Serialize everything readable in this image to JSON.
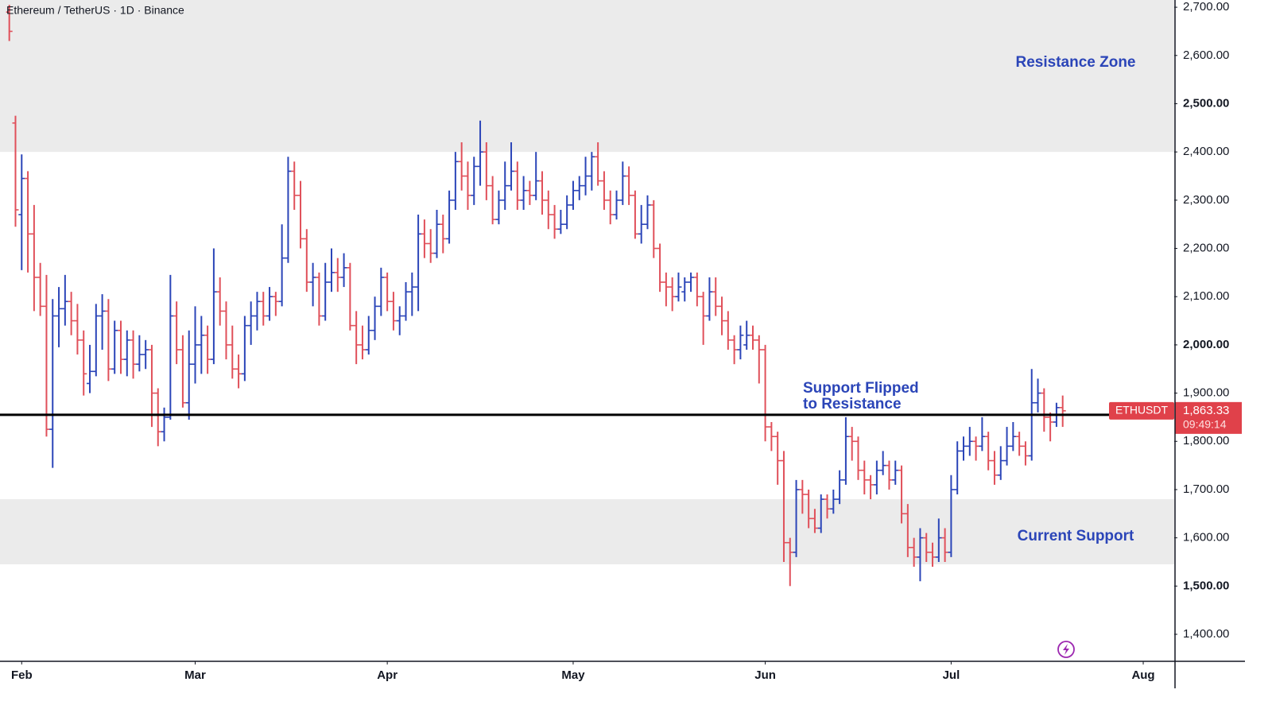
{
  "chart_data": {
    "type": "ohlc",
    "title": "Ethereum / TetherUS · 1D · Binance",
    "symbol": "ETHUSDT",
    "up_color": "#2b45b8",
    "down_color": "#e0505a",
    "xlim": [
      -1.5,
      188
    ],
    "xticks": [
      {
        "value": 2,
        "label": "Feb"
      },
      {
        "value": 30,
        "label": "Mar"
      },
      {
        "value": 61,
        "label": "Apr"
      },
      {
        "value": 91,
        "label": "May"
      },
      {
        "value": 122,
        "label": "Jun"
      },
      {
        "value": 152,
        "label": "Jul"
      },
      {
        "value": 183,
        "label": "Aug"
      }
    ],
    "ylim": [
      1344,
      2715
    ],
    "yticks": [
      {
        "value": 2700,
        "label": "2,700.00"
      },
      {
        "value": 2600,
        "label": "2,600.00"
      },
      {
        "value": 2500,
        "label": "2,500.00"
      },
      {
        "value": 2400,
        "label": "2,400.00"
      },
      {
        "value": 2300,
        "label": "2,300.00"
      },
      {
        "value": 2200,
        "label": "2,200.00"
      },
      {
        "value": 2100,
        "label": "2,100.00"
      },
      {
        "value": 2000,
        "label": "2,000.00"
      },
      {
        "value": 1900,
        "label": "1,900.00"
      },
      {
        "value": 1800,
        "label": "1,800.00"
      },
      {
        "value": 1700,
        "label": "1,700.00"
      },
      {
        "value": 1600,
        "label": "1,600.00"
      },
      {
        "value": 1500,
        "label": "1,500.00"
      },
      {
        "value": 1400,
        "label": "1,400.00"
      }
    ],
    "zones": [
      {
        "label": "Resistance Zone",
        "range": [
          2400,
          2715
        ]
      },
      {
        "label": "Current Support",
        "range": [
          1545,
          1680
        ]
      }
    ],
    "level": {
      "value": 1855,
      "label_lines": [
        "Support Flipped",
        "to Resistance"
      ]
    },
    "last_price": {
      "value": 1863.33,
      "label": "1,863.33"
    },
    "countdown": "09:49:14",
    "ohlc": [
      [
        2690,
        2705,
        2630,
        2650
      ],
      [
        2460,
        2475,
        2245,
        2280
      ],
      [
        2270,
        2395,
        2155,
        2345
      ],
      [
        2345,
        2360,
        2150,
        2230
      ],
      [
        2230,
        2290,
        2070,
        2140
      ],
      [
        2140,
        2170,
        2060,
        2080
      ],
      [
        2080,
        2145,
        1810,
        1825
      ],
      [
        1825,
        2095,
        1745,
        2060
      ],
      [
        2060,
        2120,
        1995,
        2075
      ],
      [
        2075,
        2145,
        2040,
        2090
      ],
      [
        2090,
        2110,
        2020,
        2050
      ],
      [
        2050,
        2085,
        1980,
        2010
      ],
      [
        2010,
        2030,
        1895,
        1940
      ],
      [
        1920,
        2000,
        1900,
        1945
      ],
      [
        1945,
        2085,
        1935,
        2060
      ],
      [
        2060,
        2105,
        1990,
        2070
      ],
      [
        2070,
        2095,
        1925,
        1950
      ],
      [
        1950,
        2050,
        1940,
        2030
      ],
      [
        2030,
        2050,
        1940,
        1970
      ],
      [
        1970,
        2030,
        1935,
        2010
      ],
      [
        2010,
        2030,
        1930,
        1960
      ],
      [
        1960,
        2020,
        1945,
        1980
      ],
      [
        1980,
        2010,
        1950,
        1990
      ],
      [
        1990,
        2000,
        1830,
        1900
      ],
      [
        1900,
        1910,
        1790,
        1820
      ],
      [
        1820,
        1870,
        1800,
        1850
      ],
      [
        1850,
        2145,
        1845,
        2060
      ],
      [
        2060,
        2090,
        1960,
        1990
      ],
      [
        1990,
        2020,
        1870,
        1880
      ],
      [
        1880,
        2030,
        1845,
        1960
      ],
      [
        1960,
        2080,
        1920,
        2000
      ],
      [
        2000,
        2060,
        1940,
        2020
      ],
      [
        2020,
        2040,
        1940,
        1970
      ],
      [
        1970,
        2200,
        1960,
        2110
      ],
      [
        2110,
        2140,
        2040,
        2070
      ],
      [
        2070,
        2090,
        1970,
        2000
      ],
      [
        2000,
        2040,
        1930,
        1950
      ],
      [
        1950,
        1980,
        1910,
        1940
      ],
      [
        1940,
        2060,
        1925,
        2040
      ],
      [
        2040,
        2090,
        2000,
        2060
      ],
      [
        2060,
        2110,
        2030,
        2090
      ],
      [
        2090,
        2110,
        2040,
        2060
      ],
      [
        2060,
        2120,
        2050,
        2100
      ],
      [
        2100,
        2110,
        2060,
        2090
      ],
      [
        2090,
        2250,
        2080,
        2180
      ],
      [
        2180,
        2390,
        2170,
        2360
      ],
      [
        2360,
        2380,
        2280,
        2310
      ],
      [
        2310,
        2340,
        2200,
        2220
      ],
      [
        2220,
        2240,
        2110,
        2130
      ],
      [
        2130,
        2170,
        2080,
        2140
      ],
      [
        2140,
        2150,
        2040,
        2060
      ],
      [
        2060,
        2170,
        2050,
        2130
      ],
      [
        2130,
        2200,
        2110,
        2150
      ],
      [
        2150,
        2180,
        2110,
        2140
      ],
      [
        2140,
        2190,
        2120,
        2160
      ],
      [
        2160,
        2170,
        2030,
        2040
      ],
      [
        2040,
        2070,
        1960,
        2000
      ],
      [
        2000,
        2040,
        1970,
        1990
      ],
      [
        1990,
        2060,
        1980,
        2030
      ],
      [
        2030,
        2100,
        2010,
        2080
      ],
      [
        2080,
        2160,
        2060,
        2140
      ],
      [
        2140,
        2150,
        2070,
        2090
      ],
      [
        2090,
        2110,
        2030,
        2050
      ],
      [
        2050,
        2080,
        2020,
        2060
      ],
      [
        2060,
        2130,
        2050,
        2110
      ],
      [
        2110,
        2150,
        2060,
        2120
      ],
      [
        2120,
        2270,
        2070,
        2230
      ],
      [
        2230,
        2260,
        2180,
        2210
      ],
      [
        2210,
        2240,
        2170,
        2190
      ],
      [
        2190,
        2280,
        2180,
        2250
      ],
      [
        2250,
        2270,
        2190,
        2220
      ],
      [
        2220,
        2320,
        2210,
        2300
      ],
      [
        2300,
        2400,
        2280,
        2380
      ],
      [
        2380,
        2420,
        2320,
        2350
      ],
      [
        2350,
        2380,
        2280,
        2310
      ],
      [
        2310,
        2390,
        2290,
        2370
      ],
      [
        2370,
        2465,
        2330,
        2400
      ],
      [
        2400,
        2420,
        2300,
        2330
      ],
      [
        2330,
        2350,
        2250,
        2260
      ],
      [
        2260,
        2320,
        2250,
        2300
      ],
      [
        2300,
        2380,
        2280,
        2330
      ],
      [
        2330,
        2420,
        2320,
        2360
      ],
      [
        2360,
        2380,
        2280,
        2300
      ],
      [
        2300,
        2350,
        2280,
        2320
      ],
      [
        2320,
        2340,
        2290,
        2310
      ],
      [
        2310,
        2400,
        2300,
        2340
      ],
      [
        2340,
        2360,
        2270,
        2300
      ],
      [
        2300,
        2320,
        2240,
        2270
      ],
      [
        2270,
        2290,
        2220,
        2240
      ],
      [
        2240,
        2280,
        2230,
        2250
      ],
      [
        2250,
        2310,
        2240,
        2290
      ],
      [
        2290,
        2340,
        2280,
        2320
      ],
      [
        2320,
        2350,
        2300,
        2330
      ],
      [
        2330,
        2390,
        2310,
        2350
      ],
      [
        2350,
        2400,
        2320,
        2390
      ],
      [
        2390,
        2420,
        2330,
        2340
      ],
      [
        2340,
        2360,
        2280,
        2300
      ],
      [
        2300,
        2320,
        2250,
        2270
      ],
      [
        2270,
        2320,
        2260,
        2300
      ],
      [
        2300,
        2380,
        2290,
        2350
      ],
      [
        2350,
        2370,
        2290,
        2310
      ],
      [
        2310,
        2320,
        2220,
        2230
      ],
      [
        2230,
        2290,
        2210,
        2250
      ],
      [
        2250,
        2310,
        2240,
        2290
      ],
      [
        2290,
        2300,
        2180,
        2200
      ],
      [
        2200,
        2210,
        2110,
        2130
      ],
      [
        2130,
        2150,
        2080,
        2120
      ],
      [
        2120,
        2140,
        2070,
        2100
      ],
      [
        2100,
        2150,
        2090,
        2120
      ],
      [
        2110,
        2140,
        2090,
        2130
      ],
      [
        2130,
        2150,
        2110,
        2140
      ],
      [
        2140,
        2150,
        2080,
        2100
      ],
      [
        2100,
        2110,
        2000,
        2060
      ],
      [
        2060,
        2140,
        2050,
        2110
      ],
      [
        2110,
        2140,
        2060,
        2080
      ],
      [
        2080,
        2100,
        2020,
        2050
      ],
      [
        2050,
        2070,
        1990,
        2010
      ],
      [
        2010,
        2020,
        1960,
        1990
      ],
      [
        1990,
        2040,
        1970,
        2020
      ],
      [
        2000,
        2050,
        1990,
        2020
      ],
      [
        2020,
        2040,
        1990,
        2010
      ],
      [
        2010,
        2020,
        1920,
        1990
      ],
      [
        1990,
        2000,
        1800,
        1830
      ],
      [
        1830,
        1840,
        1780,
        1810
      ],
      [
        1810,
        1820,
        1710,
        1760
      ],
      [
        1760,
        1780,
        1550,
        1590
      ],
      [
        1590,
        1600,
        1500,
        1570
      ],
      [
        1570,
        1720,
        1560,
        1700
      ],
      [
        1700,
        1720,
        1650,
        1690
      ],
      [
        1690,
        1700,
        1620,
        1640
      ],
      [
        1640,
        1660,
        1610,
        1620
      ],
      [
        1620,
        1690,
        1610,
        1680
      ],
      [
        1680,
        1690,
        1640,
        1660
      ],
      [
        1660,
        1700,
        1650,
        1680
      ],
      [
        1680,
        1740,
        1670,
        1720
      ],
      [
        1720,
        1850,
        1710,
        1810
      ],
      [
        1810,
        1830,
        1760,
        1800
      ],
      [
        1800,
        1810,
        1720,
        1740
      ],
      [
        1740,
        1760,
        1690,
        1720
      ],
      [
        1720,
        1730,
        1680,
        1710
      ],
      [
        1710,
        1760,
        1690,
        1740
      ],
      [
        1740,
        1780,
        1730,
        1750
      ],
      [
        1750,
        1760,
        1700,
        1720
      ],
      [
        1720,
        1760,
        1710,
        1740
      ],
      [
        1740,
        1750,
        1630,
        1650
      ],
      [
        1650,
        1670,
        1560,
        1580
      ],
      [
        1580,
        1600,
        1540,
        1560
      ],
      [
        1560,
        1620,
        1510,
        1600
      ],
      [
        1600,
        1610,
        1550,
        1570
      ],
      [
        1570,
        1590,
        1540,
        1560
      ],
      [
        1560,
        1640,
        1550,
        1600
      ],
      [
        1600,
        1620,
        1550,
        1570
      ],
      [
        1570,
        1730,
        1560,
        1700
      ],
      [
        1700,
        1800,
        1690,
        1780
      ],
      [
        1780,
        1810,
        1760,
        1790
      ],
      [
        1790,
        1830,
        1770,
        1800
      ],
      [
        1800,
        1810,
        1760,
        1790
      ],
      [
        1790,
        1850,
        1780,
        1810
      ],
      [
        1810,
        1820,
        1740,
        1760
      ],
      [
        1760,
        1780,
        1710,
        1730
      ],
      [
        1730,
        1790,
        1720,
        1760
      ],
      [
        1760,
        1830,
        1750,
        1790
      ],
      [
        1790,
        1840,
        1780,
        1810
      ],
      [
        1810,
        1820,
        1770,
        1790
      ],
      [
        1790,
        1800,
        1750,
        1770
      ],
      [
        1770,
        1950,
        1760,
        1880
      ],
      [
        1880,
        1930,
        1860,
        1900
      ],
      [
        1900,
        1910,
        1820,
        1850
      ],
      [
        1850,
        1860,
        1800,
        1840
      ],
      [
        1840,
        1880,
        1830,
        1870
      ],
      [
        1870,
        1895,
        1830,
        1863.33
      ]
    ]
  }
}
